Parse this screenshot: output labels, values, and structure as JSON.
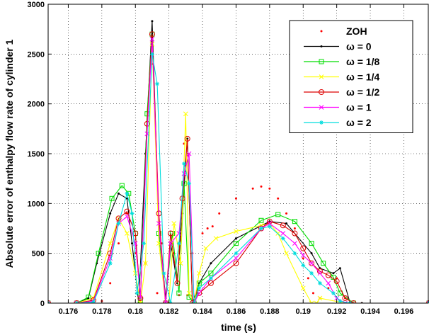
{
  "chart_data": {
    "type": "line",
    "title": "",
    "xlabel": "time (s)",
    "ylabel": "Absolute error of enthalpy flow rate of cylinder 1",
    "xlim": [
      0.1748,
      0.1975
    ],
    "ylim": [
      0,
      3000
    ],
    "x_ticks": [
      0.176,
      0.178,
      0.18,
      0.182,
      0.184,
      0.186,
      0.188,
      0.19,
      0.192,
      0.194,
      0.196
    ],
    "x_tick_labels": [
      "0.176",
      "0.178",
      "0.18",
      "0.182",
      "0.184",
      "0.186",
      "0.188",
      "0.19",
      "0.192",
      "0.194",
      "0.196"
    ],
    "y_ticks": [
      0,
      500,
      1000,
      1500,
      2000,
      2500,
      3000
    ],
    "y_tick_labels": [
      "0",
      "500",
      "1000",
      "1500",
      "2000",
      "2500",
      "3000"
    ],
    "grid": true,
    "legend_position": "top-right",
    "series": [
      {
        "name": "ZOH",
        "color": "#ff0000",
        "style": "dots",
        "marker": "dot",
        "x": [
          0.1748,
          0.1775,
          0.178,
          0.1785,
          0.179,
          0.1795,
          0.18,
          0.1803,
          0.1806,
          0.181,
          0.1813,
          0.1816,
          0.182,
          0.1823,
          0.1826,
          0.1829,
          0.1831,
          0.1834,
          0.1837,
          0.184,
          0.1843,
          0.1846,
          0.185,
          0.186,
          0.187,
          0.1875,
          0.188,
          0.1885,
          0.189,
          0.1895,
          0.19,
          0.1903,
          0.1906,
          0.191,
          0.1915,
          0.192,
          0.1925,
          0.193,
          0.1935,
          0.1975
        ],
        "y": [
          0,
          0,
          20,
          200,
          600,
          900,
          500,
          0,
          400,
          2400,
          100,
          600,
          0,
          500,
          80,
          1600,
          80,
          500,
          100,
          700,
          750,
          770,
          900,
          1050,
          1150,
          1170,
          1150,
          1050,
          900,
          750,
          450,
          250,
          100,
          50,
          150,
          250,
          50,
          0,
          0,
          0
        ]
      },
      {
        "name": "ω = 0",
        "color": "#000000",
        "style": "line",
        "marker": "dot",
        "x": [
          0.1748,
          0.1765,
          0.1772,
          0.1777,
          0.1785,
          0.179,
          0.1795,
          0.1798,
          0.1802,
          0.1806,
          0.181,
          0.1814,
          0.1818,
          0.1821,
          0.1825,
          0.1828,
          0.1831,
          0.1834,
          0.1838,
          0.1845,
          0.186,
          0.188,
          0.189,
          0.1905,
          0.191,
          0.1918,
          0.1922,
          0.1928,
          0.1935,
          0.1975
        ],
        "y": [
          0,
          0,
          50,
          400,
          900,
          1100,
          1050,
          600,
          0,
          1500,
          2830,
          800,
          50,
          600,
          200,
          900,
          1650,
          0,
          200,
          400,
          650,
          820,
          800,
          500,
          350,
          300,
          350,
          0,
          0,
          0
        ]
      },
      {
        "name": "ω = 1/8",
        "color": "#00dd00",
        "style": "line",
        "marker": "square",
        "x": [
          0.1748,
          0.1765,
          0.1772,
          0.1778,
          0.1786,
          0.1792,
          0.1796,
          0.18,
          0.1803,
          0.1807,
          0.181,
          0.1814,
          0.1818,
          0.1822,
          0.1826,
          0.1829,
          0.1832,
          0.1835,
          0.1838,
          0.1845,
          0.186,
          0.1875,
          0.1885,
          0.1895,
          0.1905,
          0.1912,
          0.1918,
          0.1922,
          0.193,
          0.1975
        ],
        "y": [
          0,
          0,
          60,
          500,
          1050,
          1180,
          1100,
          700,
          30,
          1900,
          2700,
          700,
          0,
          700,
          100,
          1200,
          60,
          0,
          200,
          300,
          600,
          830,
          890,
          820,
          600,
          400,
          260,
          100,
          0,
          0
        ]
      },
      {
        "name": "ω = 1/4",
        "color": "#ffff00",
        "style": "line",
        "marker": "x",
        "x": [
          0.1748,
          0.1765,
          0.1775,
          0.1785,
          0.179,
          0.1795,
          0.18,
          0.1803,
          0.1806,
          0.181,
          0.1814,
          0.1818,
          0.182,
          0.1823,
          0.1827,
          0.183,
          0.1832,
          0.1835,
          0.1838,
          0.1842,
          0.1848,
          0.186,
          0.1875,
          0.188,
          0.1885,
          0.189,
          0.19,
          0.1905,
          0.1908,
          0.191,
          0.1925,
          0.1975
        ],
        "y": [
          0,
          0,
          50,
          600,
          850,
          700,
          300,
          0,
          400,
          2600,
          600,
          0,
          0,
          800,
          400,
          1900,
          100,
          0,
          300,
          550,
          650,
          720,
          780,
          800,
          700,
          500,
          150,
          0,
          0,
          50,
          0,
          0
        ]
      },
      {
        "name": "ω = 1/2",
        "color": "#dd0000",
        "style": "line",
        "marker": "circle",
        "x": [
          0.1748,
          0.1765,
          0.1775,
          0.1785,
          0.179,
          0.1795,
          0.18,
          0.1803,
          0.1807,
          0.181,
          0.1814,
          0.1818,
          0.1821,
          0.1825,
          0.1828,
          0.1831,
          0.1834,
          0.1838,
          0.1845,
          0.186,
          0.1875,
          0.188,
          0.1888,
          0.1895,
          0.19,
          0.1905,
          0.191,
          0.1915,
          0.192,
          0.1925,
          0.193,
          0.1975
        ],
        "y": [
          0,
          0,
          30,
          500,
          850,
          920,
          700,
          50,
          1800,
          2700,
          900,
          0,
          700,
          200,
          1050,
          1650,
          0,
          100,
          200,
          400,
          750,
          820,
          780,
          700,
          550,
          400,
          320,
          280,
          220,
          50,
          0,
          0
        ]
      },
      {
        "name": "ω = 1",
        "color": "#ff00ff",
        "style": "line",
        "marker": "x",
        "x": [
          0.1748,
          0.1765,
          0.1775,
          0.1785,
          0.179,
          0.1795,
          0.18,
          0.1803,
          0.1807,
          0.181,
          0.1814,
          0.1818,
          0.1821,
          0.1826,
          0.1829,
          0.1832,
          0.1835,
          0.1838,
          0.1845,
          0.186,
          0.1875,
          0.188,
          0.1888,
          0.1895,
          0.19,
          0.1905,
          0.191,
          0.1915,
          0.192,
          0.1925,
          0.1975
        ],
        "y": [
          0,
          0,
          20,
          450,
          800,
          870,
          600,
          50,
          1700,
          2650,
          800,
          0,
          600,
          700,
          1300,
          1500,
          0,
          100,
          250,
          450,
          750,
          800,
          700,
          600,
          480,
          400,
          300,
          200,
          50,
          0,
          0
        ]
      },
      {
        "name": "ω = 2",
        "color": "#00dddd",
        "style": "line",
        "marker": "star",
        "x": [
          0.1748,
          0.1765,
          0.1775,
          0.1785,
          0.179,
          0.1795,
          0.1798,
          0.1801,
          0.1805,
          0.181,
          0.1813,
          0.1817,
          0.1821,
          0.1826,
          0.1829,
          0.1832,
          0.1835,
          0.1838,
          0.1845,
          0.186,
          0.1875,
          0.188,
          0.1888,
          0.1895,
          0.19,
          0.1905,
          0.191,
          0.1918,
          0.1922,
          0.1928,
          0.1975
        ],
        "y": [
          0,
          0,
          10,
          400,
          800,
          1100,
          900,
          100,
          600,
          2500,
          2200,
          300,
          0,
          600,
          1400,
          1200,
          0,
          150,
          250,
          500,
          750,
          770,
          650,
          500,
          380,
          300,
          200,
          100,
          20,
          0,
          0
        ]
      }
    ]
  }
}
